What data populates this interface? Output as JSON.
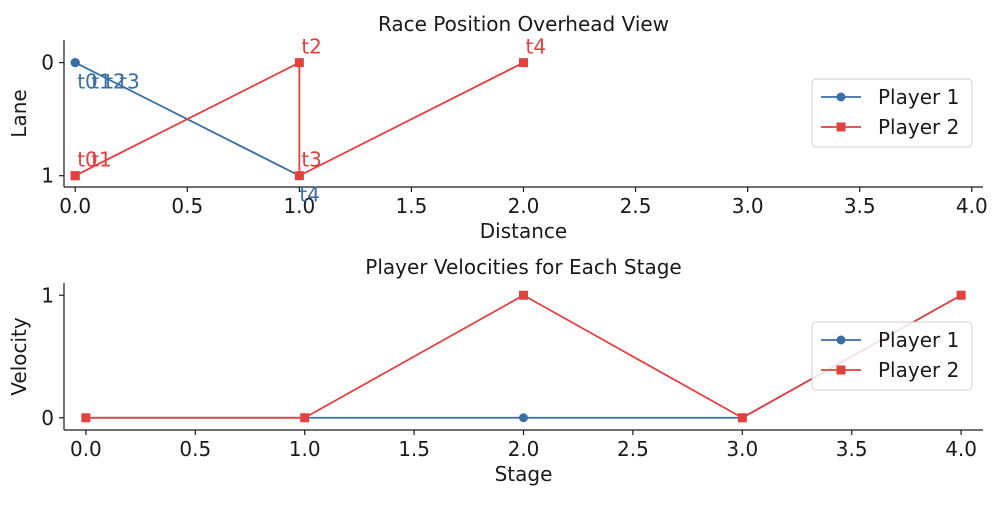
{
  "chart_data": [
    {
      "type": "line",
      "title": "Race Position Overhead View",
      "xlabel": "Distance",
      "ylabel": "Lane",
      "xlim": [
        -0.05,
        4.05
      ],
      "ylim": [
        1.1,
        -0.2
      ],
      "y_inverted": true,
      "xticks": [
        0.0,
        0.5,
        1.0,
        1.5,
        2.0,
        2.5,
        3.0,
        3.5,
        4.0
      ],
      "xtick_labels": [
        "0.0",
        "0.5",
        "1.0",
        "1.5",
        "2.0",
        "2.5",
        "3.0",
        "3.5",
        "4.0"
      ],
      "yticks": [
        0,
        1
      ],
      "ytick_labels": [
        "0",
        "1"
      ],
      "grid": false,
      "legend_position": "right",
      "series": [
        {
          "name": "Player 1",
          "color": "#3a6fa5",
          "marker": "circle",
          "points": [
            {
              "x": 0,
              "y": 0,
              "label": "t0"
            },
            {
              "x": 0,
              "y": 0,
              "label": "t1"
            },
            {
              "x": 0,
              "y": 0,
              "label": "t2"
            },
            {
              "x": 0,
              "y": 0,
              "label": "t3"
            },
            {
              "x": 1,
              "y": 1,
              "label": "t4"
            }
          ]
        },
        {
          "name": "Player 2",
          "color": "#e3413f",
          "marker": "square",
          "points": [
            {
              "x": 0,
              "y": 1,
              "label": "t0"
            },
            {
              "x": 0,
              "y": 1,
              "label": "t1"
            },
            {
              "x": 1,
              "y": 0,
              "label": "t2"
            },
            {
              "x": 1,
              "y": 1,
              "label": "t3"
            },
            {
              "x": 2,
              "y": 0,
              "label": "t4"
            }
          ]
        }
      ]
    },
    {
      "type": "line",
      "title": "Player Velocities for Each Stage",
      "xlabel": "Stage",
      "ylabel": "Velocity",
      "xlim": [
        -0.1,
        4.1
      ],
      "ylim": [
        -0.1,
        1.1
      ],
      "xticks": [
        0.0,
        0.5,
        1.0,
        1.5,
        2.0,
        2.5,
        3.0,
        3.5,
        4.0
      ],
      "xtick_labels": [
        "0.0",
        "0.5",
        "1.0",
        "1.5",
        "2.0",
        "2.5",
        "3.0",
        "3.5",
        "4.0"
      ],
      "yticks": [
        0,
        1
      ],
      "ytick_labels": [
        "0",
        "1"
      ],
      "grid": false,
      "legend_position": "right",
      "series": [
        {
          "name": "Player 1",
          "color": "#3a6fa5",
          "marker": "circle",
          "points": [
            {
              "x": 0,
              "y": 0
            },
            {
              "x": 1,
              "y": 0
            },
            {
              "x": 2,
              "y": 0
            },
            {
              "x": 3,
              "y": 0
            },
            {
              "x": 4,
              "y": 1
            }
          ]
        },
        {
          "name": "Player 2",
          "color": "#e3413f",
          "marker": "square",
          "points": [
            {
              "x": 0,
              "y": 0
            },
            {
              "x": 1,
              "y": 0
            },
            {
              "x": 2,
              "y": 1
            },
            {
              "x": 3,
              "y": 0
            },
            {
              "x": 4,
              "y": 1
            }
          ]
        }
      ]
    }
  ]
}
